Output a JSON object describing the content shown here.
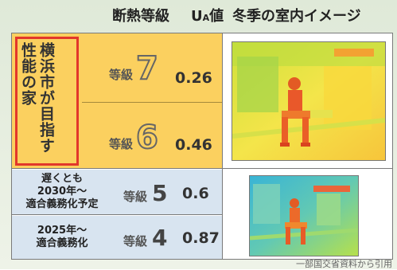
{
  "header": {
    "col_grade": "断熱等級",
    "col_ua_u": "U",
    "col_ua_sub": "A",
    "col_ua_tail": "値",
    "col_image": "冬季の室内イメージ"
  },
  "yokohama_label": "横浜市が目指す性能の家",
  "rows": [
    {
      "grade_label": "等級",
      "grade_num": "7",
      "ua": "0.26"
    },
    {
      "grade_label": "等級",
      "grade_num": "6",
      "ua": "0.46"
    },
    {
      "grade_label": "等級",
      "grade_num": "5",
      "ua": "0.6",
      "note_line1": "遅くとも",
      "note_line2": "2030年～",
      "note_line3": "適合義務化予定"
    },
    {
      "grade_label": "等級",
      "grade_num": "4",
      "ua": "0.87",
      "note_line1": "2025年～",
      "note_line2": "適合義務化"
    }
  ],
  "footer_text": "一部国交省資料から引用",
  "colors": {
    "accent_yellow": "#fbd05f",
    "accent_red": "#e2372b",
    "row_blue": "#d8e4f0"
  }
}
